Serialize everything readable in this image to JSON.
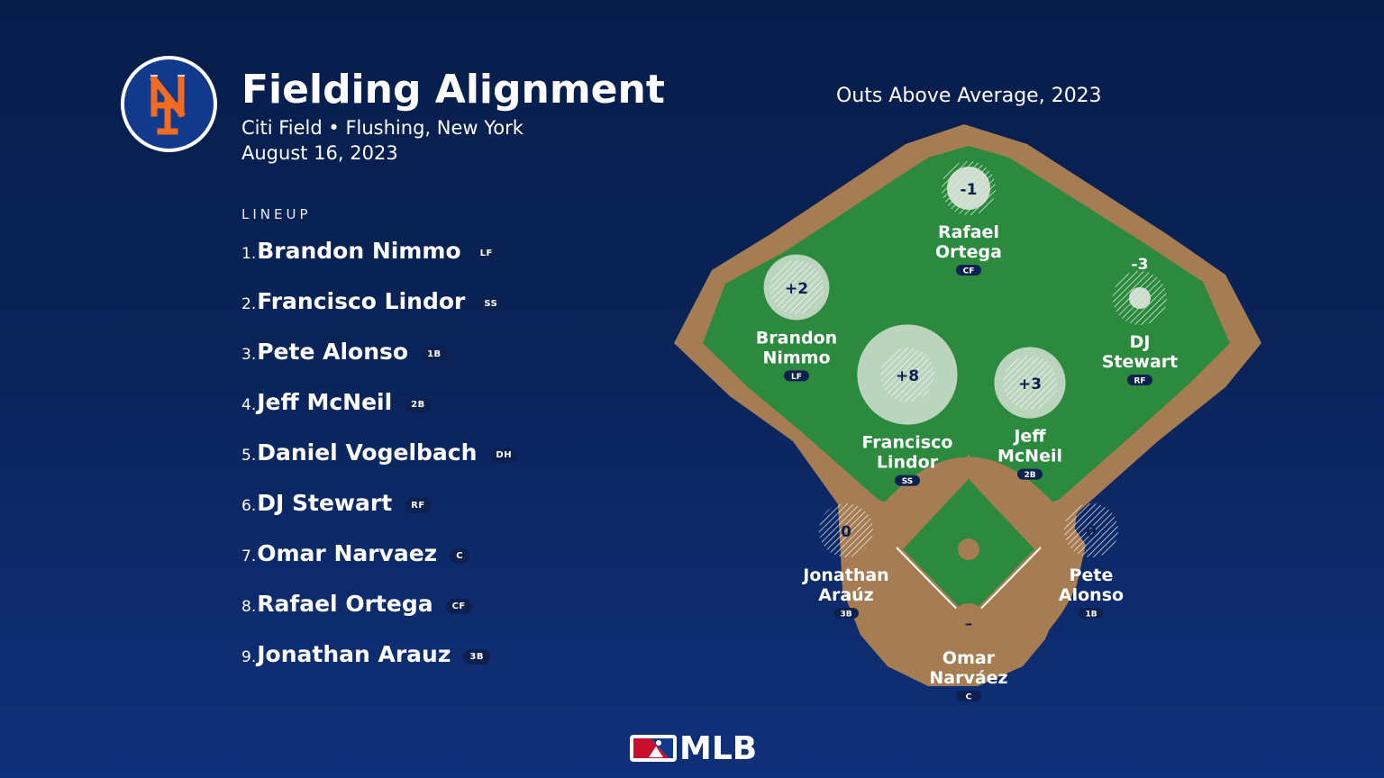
{
  "header": {
    "title": "Fielding Alignment",
    "subtitle": "Citi Field • Flushing, New York",
    "date": "August 16, 2023",
    "team_logo": "NY"
  },
  "lineup": {
    "label": "LINEUP",
    "items": [
      {
        "num": "1.",
        "name": "Brandon Nimmo",
        "pos": "LF"
      },
      {
        "num": "2.",
        "name": "Francisco Lindor",
        "pos": "SS"
      },
      {
        "num": "3.",
        "name": "Pete Alonso",
        "pos": "1B"
      },
      {
        "num": "4.",
        "name": "Jeff McNeil",
        "pos": "2B"
      },
      {
        "num": "5.",
        "name": "Daniel Vogelbach",
        "pos": "DH"
      },
      {
        "num": "6.",
        "name": "DJ Stewart",
        "pos": "RF"
      },
      {
        "num": "7.",
        "name": "Omar Narvaez",
        "pos": "C"
      },
      {
        "num": "8.",
        "name": "Rafael Ortega",
        "pos": "CF"
      },
      {
        "num": "9.",
        "name": "Jonathan Arauz",
        "pos": "3B"
      }
    ]
  },
  "field": {
    "title": "Outs Above Average, 2023",
    "players": [
      {
        "id": "cf",
        "first": "Rafael",
        "last": "Ortega",
        "pos": "CF",
        "oaa": "-1",
        "oaa_value": -1
      },
      {
        "id": "lf",
        "first": "Brandon",
        "last": "Nimmo",
        "pos": "LF",
        "oaa": "+2",
        "oaa_value": 2
      },
      {
        "id": "rf",
        "first": "DJ",
        "last": "Stewart",
        "pos": "RF",
        "oaa": "-3",
        "oaa_value": -3
      },
      {
        "id": "ss",
        "first": "Francisco",
        "last": "Lindor",
        "pos": "SS",
        "oaa": "+8",
        "oaa_value": 8
      },
      {
        "id": "2b",
        "first": "Jeff",
        "last": "McNeil",
        "pos": "2B",
        "oaa": "+3",
        "oaa_value": 3
      },
      {
        "id": "3b",
        "first": "Jonathan",
        "last": "Araúz",
        "pos": "3B",
        "oaa": "0",
        "oaa_value": 0
      },
      {
        "id": "1b",
        "first": "Pete",
        "last": "Alonso",
        "pos": "1B",
        "oaa": "0",
        "oaa_value": 0
      },
      {
        "id": "c",
        "first": "Omar",
        "last": "Narváez",
        "pos": "C",
        "oaa": "–",
        "oaa_value": null
      }
    ]
  },
  "footer": {
    "brand": "MLB"
  },
  "colors": {
    "background_top": "#061d4a",
    "background_bottom": "#0f307a",
    "grass": "#2b8a3e",
    "dirt": "#a67c52",
    "mets_orange": "#f26b21",
    "mets_blue": "#123a8c",
    "pill": "#0d2151"
  }
}
